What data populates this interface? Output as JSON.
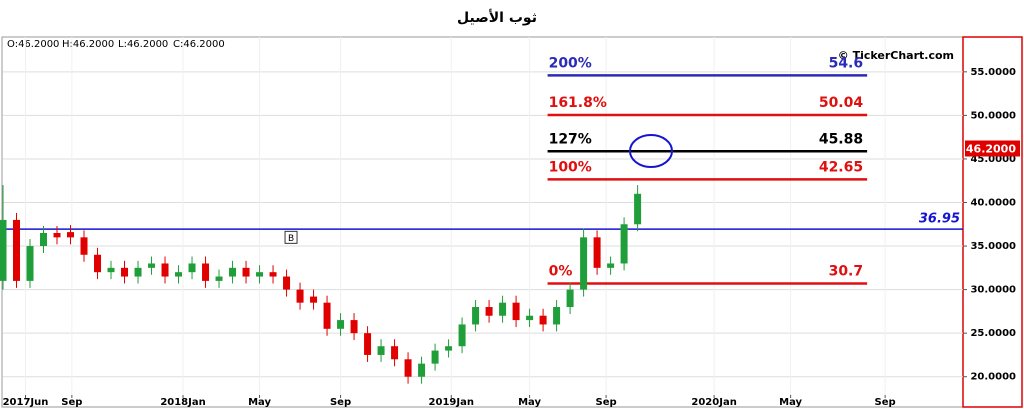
{
  "chart_data": {
    "type": "candlestick",
    "title": "ثوب الأصيل",
    "ohlc_header": [
      "O:46.2000",
      "H:46.2000",
      "L:46.2000",
      "C:46.2000"
    ],
    "watermark": "© TickerChart.com",
    "x": [
      0,
      3,
      6,
      9,
      12,
      15,
      18,
      21,
      24,
      27,
      30,
      33,
      36,
      39,
      42,
      45,
      48,
      51,
      54,
      57,
      60,
      63,
      66,
      69,
      72,
      75,
      78,
      81,
      84,
      87,
      90,
      93,
      96,
      99,
      102,
      105,
      108,
      111,
      114,
      117,
      120,
      123,
      126,
      129,
      132,
      135,
      138,
      141
    ],
    "open": [
      31,
      38,
      31,
      35,
      36.5,
      36.6,
      36,
      34,
      32,
      32.5,
      31.5,
      32.5,
      33,
      31.5,
      32,
      33,
      31,
      31.5,
      32.5,
      31.5,
      32,
      31.5,
      30,
      29.2,
      28.5,
      25.5,
      26.5,
      25,
      22.5,
      23.5,
      22,
      20,
      21.5,
      23,
      23.5,
      26,
      28,
      27,
      28.5,
      26.5,
      27,
      26,
      28,
      30,
      36,
      32.5,
      33,
      37.5
    ],
    "high": [
      42,
      38.8,
      35.8,
      37.3,
      37.3,
      37.4,
      36.8,
      34.8,
      33.3,
      33.3,
      33.3,
      33.8,
      33.8,
      32.8,
      33.8,
      33.8,
      32.3,
      33.3,
      33.3,
      32.8,
      32.8,
      32.3,
      30.8,
      30,
      29.3,
      27.3,
      27.3,
      25.8,
      24.3,
      24.3,
      22.8,
      22.3,
      23.8,
      24.3,
      26.8,
      28.8,
      28.8,
      29.3,
      29.3,
      27.8,
      27.8,
      28.8,
      30.8,
      37,
      36.8,
      33.8,
      38.3,
      42
    ],
    "low": [
      30,
      30.2,
      30.2,
      34.2,
      35.2,
      35.2,
      33.2,
      31.2,
      31.2,
      30.7,
      30.7,
      31.7,
      30.7,
      30.7,
      31.2,
      30.2,
      30.2,
      30.7,
      30.7,
      30.7,
      30.7,
      29.2,
      27.7,
      27.7,
      24.7,
      24.7,
      24.2,
      21.7,
      21.7,
      21.2,
      19.2,
      19.2,
      20.7,
      22.2,
      22.7,
      25.2,
      26.2,
      26.2,
      25.7,
      25.7,
      25.2,
      25.2,
      27.2,
      29.2,
      31.7,
      31.7,
      32.2,
      36.7
    ],
    "close": [
      38,
      31,
      35,
      36.5,
      36,
      36,
      34,
      32,
      32.5,
      31.5,
      32.5,
      33,
      31.5,
      32,
      33,
      31,
      31.5,
      32.5,
      31.5,
      32,
      31.5,
      30,
      28.5,
      28.5,
      25.5,
      26.5,
      25,
      22.5,
      23.5,
      22,
      20,
      21.5,
      23,
      23.5,
      26,
      28,
      27,
      28.5,
      26.5,
      27,
      26,
      28,
      30,
      36,
      32.5,
      33,
      37.5,
      41
    ],
    "up_color": "#1f9e3a",
    "down_color": "#e00000",
    "xlim": [
      0,
      213.3
    ],
    "xticks": [
      {
        "value": 5,
        "label": "2017Jun"
      },
      {
        "value": 15.3,
        "label": "Sep"
      },
      {
        "value": 40,
        "label": "2018Jan"
      },
      {
        "value": 57,
        "label": "May"
      },
      {
        "value": 75,
        "label": "Sep"
      },
      {
        "value": 99.6,
        "label": "2019Jan"
      },
      {
        "value": 117,
        "label": "May"
      },
      {
        "value": 134,
        "label": "Sep"
      },
      {
        "value": 158,
        "label": "2020Jan"
      },
      {
        "value": 175,
        "label": "May"
      },
      {
        "value": 196,
        "label": "Sep"
      }
    ],
    "ylim": [
      17.9,
      59
    ],
    "yticks": [
      {
        "value": 20,
        "label": "20.0000"
      },
      {
        "value": 25,
        "label": "25.0000"
      },
      {
        "value": 30,
        "label": "30.0000"
      },
      {
        "value": 35,
        "label": "35.0000"
      },
      {
        "value": 40,
        "label": "40.0000"
      },
      {
        "value": 45,
        "label": "45.0000"
      },
      {
        "value": 50,
        "label": "50.0000"
      },
      {
        "value": 55,
        "label": "55.0000"
      }
    ],
    "grid": true,
    "levels": [
      {
        "label": "200%",
        "value": 54.6,
        "color": "#2b2bb8",
        "start": 121,
        "end": 192
      },
      {
        "label": "161.8%",
        "value": 50.04,
        "color": "#e01010",
        "start": 121,
        "end": 192
      },
      {
        "label": "127%",
        "value": 45.88,
        "color": "#000000",
        "start": 121,
        "end": 192
      },
      {
        "label": "100%",
        "value": 42.65,
        "color": "#e01010",
        "start": 121,
        "end": 192
      },
      {
        "label": "0%",
        "value": 30.7,
        "color": "#e01010",
        "start": 121,
        "end": 192
      }
    ],
    "hline": {
      "value": 36.95,
      "color": "#1515d0"
    },
    "last_price": {
      "value": 46.2,
      "label": "46.2000",
      "color": "#e00000"
    },
    "marker": {
      "x": 64,
      "y": 36,
      "label": "B"
    }
  }
}
